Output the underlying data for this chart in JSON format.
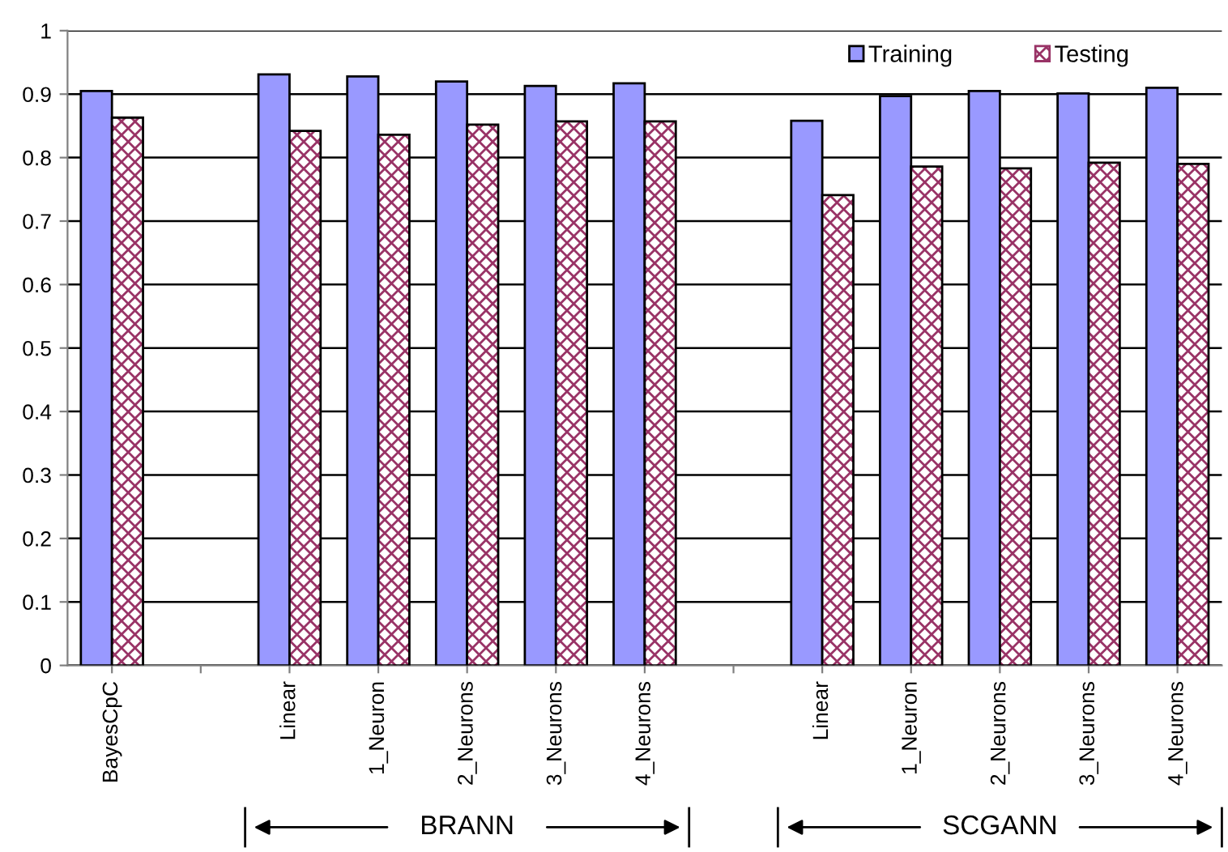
{
  "chart_data": {
    "type": "bar",
    "categories": [
      "BayesCpC",
      null,
      "Linear",
      "1_Neuron",
      "2_Neurons",
      "3_Neurons",
      "4_Neurons",
      null,
      "Linear",
      "1_Neuron",
      "2_Neurons",
      "3_Neurons",
      "4_Neurons"
    ],
    "series": [
      {
        "name": "Training",
        "color": "#9999ff",
        "values": [
          0.905,
          null,
          0.931,
          0.928,
          0.92,
          0.913,
          0.917,
          null,
          0.858,
          0.897,
          0.905,
          0.901,
          0.91
        ]
      },
      {
        "name": "Testing",
        "color": "#993366",
        "values": [
          0.863,
          null,
          0.842,
          0.836,
          0.852,
          0.857,
          0.857,
          null,
          0.741,
          0.786,
          0.783,
          0.792,
          0.79
        ]
      }
    ],
    "ylim": [
      0,
      1
    ],
    "yticks": [
      0,
      0.1,
      0.2,
      0.3,
      0.4,
      0.5,
      0.6,
      0.7,
      0.8,
      0.9,
      1
    ],
    "grid": "y",
    "legend": "top right",
    "annotations": [
      "BRANN",
      "SCGANN"
    ]
  }
}
